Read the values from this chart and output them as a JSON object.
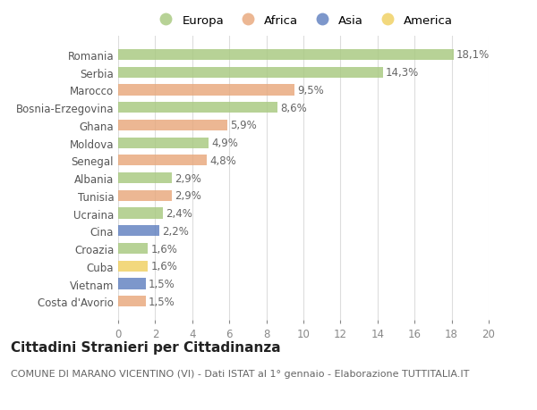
{
  "countries": [
    "Romania",
    "Serbia",
    "Marocco",
    "Bosnia-Erzegovina",
    "Ghana",
    "Moldova",
    "Senegal",
    "Albania",
    "Tunisia",
    "Ucraina",
    "Cina",
    "Croazia",
    "Cuba",
    "Vietnam",
    "Costa d'Avorio"
  ],
  "values": [
    18.1,
    14.3,
    9.5,
    8.6,
    5.9,
    4.9,
    4.8,
    2.9,
    2.9,
    2.4,
    2.2,
    1.6,
    1.6,
    1.5,
    1.5
  ],
  "labels": [
    "18,1%",
    "14,3%",
    "9,5%",
    "8,6%",
    "5,9%",
    "4,9%",
    "4,8%",
    "2,9%",
    "2,9%",
    "2,4%",
    "2,2%",
    "1,6%",
    "1,6%",
    "1,5%",
    "1,5%"
  ],
  "continents": [
    "Europa",
    "Europa",
    "Africa",
    "Europa",
    "Africa",
    "Europa",
    "Africa",
    "Europa",
    "Africa",
    "Europa",
    "Asia",
    "Europa",
    "America",
    "Asia",
    "Africa"
  ],
  "continent_colors": {
    "Europa": "#a8c97f",
    "Africa": "#e8a87c",
    "Asia": "#6080c0",
    "America": "#f0d060"
  },
  "legend_order": [
    "Europa",
    "Africa",
    "Asia",
    "America"
  ],
  "xlim": [
    0,
    20
  ],
  "xticks": [
    0,
    2,
    4,
    6,
    8,
    10,
    12,
    14,
    16,
    18,
    20
  ],
  "title": "Cittadini Stranieri per Cittadinanza",
  "subtitle": "COMUNE DI MARANO VICENTINO (VI) - Dati ISTAT al 1° gennaio - Elaborazione TUTTITALIA.IT",
  "background_color": "#ffffff",
  "grid_color": "#dddddd",
  "bar_height": 0.62,
  "label_fontsize": 8.5,
  "tick_fontsize": 8.5,
  "title_fontsize": 11,
  "subtitle_fontsize": 8
}
